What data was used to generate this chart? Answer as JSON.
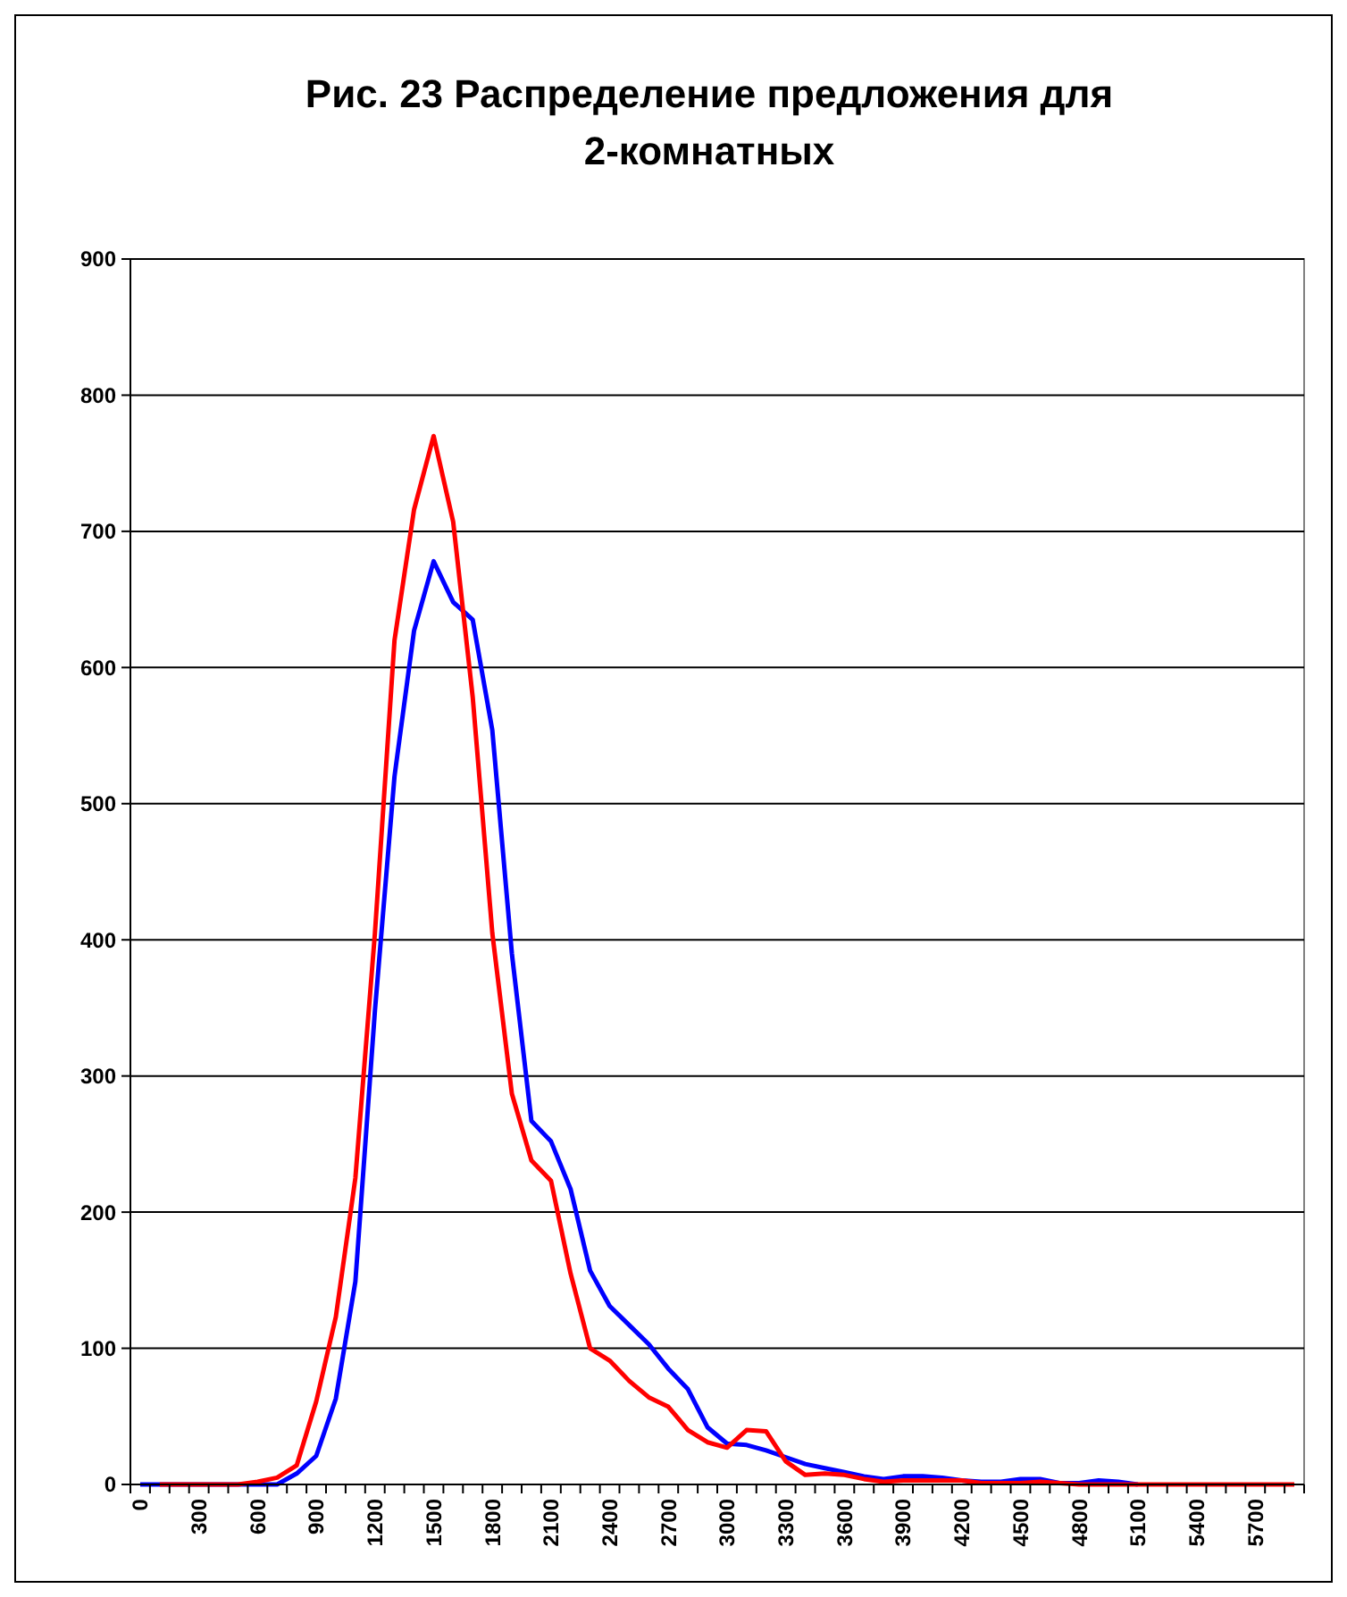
{
  "chart_data": {
    "type": "line",
    "title": "Рис. 23 Распределение предложения для 2-комнатных",
    "categories": [
      "0",
      null,
      null,
      "300",
      null,
      null,
      "600",
      null,
      null,
      "900",
      null,
      null,
      "1200",
      null,
      null,
      "1500",
      null,
      null,
      "1800",
      null,
      null,
      "2100",
      null,
      null,
      "2400",
      null,
      null,
      "2700",
      null,
      null,
      "3000",
      null,
      null,
      "3300",
      null,
      null,
      "3600",
      null,
      null,
      "3900",
      null,
      null,
      "4200",
      null,
      null,
      "4500",
      null,
      null,
      "4800",
      null,
      null,
      "5100",
      null,
      null,
      "5400",
      null,
      null,
      "5700",
      null,
      null
    ],
    "series": [
      {
        "color": "#0000ff",
        "values": [
          0,
          0,
          0,
          0,
          0,
          0,
          0,
          0,
          8,
          21,
          63,
          149,
          348,
          520,
          627,
          678,
          648,
          635,
          554,
          390,
          267,
          252,
          217,
          157,
          131,
          117,
          103,
          85,
          70,
          42,
          30,
          29,
          25,
          20,
          15,
          12,
          9,
          6,
          4,
          6,
          6,
          5,
          3,
          2,
          2,
          4,
          4,
          1,
          1,
          3,
          2,
          0,
          null,
          null,
          null,
          null,
          null,
          null,
          null,
          null
        ]
      },
      {
        "color": "#ff0000",
        "values": [
          null,
          0,
          0,
          0,
          0,
          0,
          2,
          5,
          14,
          61,
          123,
          225,
          405,
          620,
          716,
          770,
          707,
          578,
          405,
          287,
          238,
          223,
          155,
          100,
          91,
          76,
          64,
          57,
          40,
          31,
          27,
          40,
          39,
          17,
          7,
          8,
          7,
          4,
          2,
          3,
          3,
          3,
          3,
          1,
          1,
          1,
          2,
          1,
          0,
          0,
          0,
          0,
          0,
          0,
          0,
          0,
          0,
          0,
          0,
          0
        ]
      }
    ],
    "ylim": [
      0,
      900
    ],
    "yticks": [
      0,
      100,
      200,
      300,
      400,
      500,
      600,
      700,
      800,
      900
    ],
    "grid": "y"
  }
}
